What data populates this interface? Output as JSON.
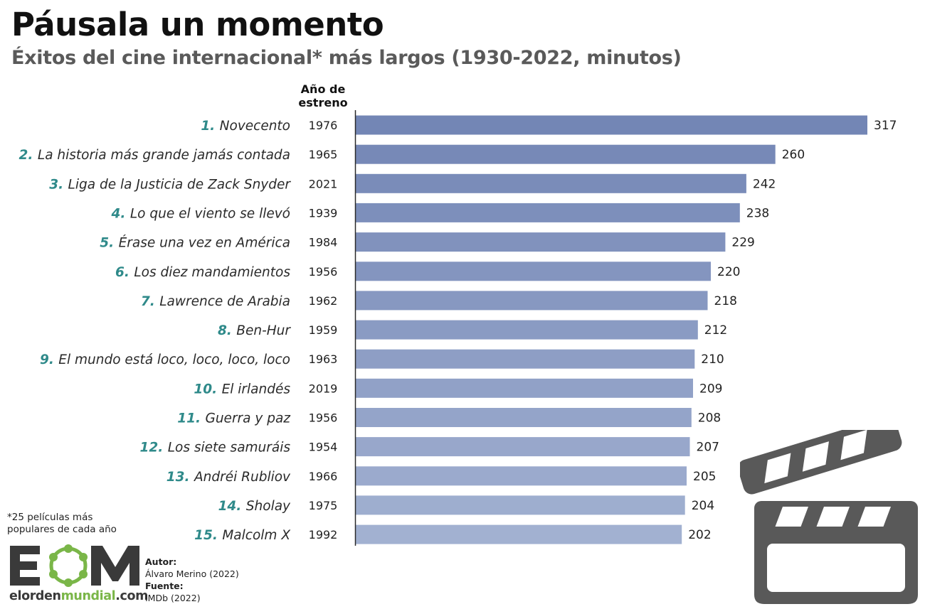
{
  "header": {
    "title": "Páusala un momento",
    "subtitle": "Éxitos del cine internacional* más largos (1930-2022, minutos)"
  },
  "columns": {
    "year_header_line1": "Año de",
    "year_header_line2": "estreno"
  },
  "chart_data": {
    "type": "bar",
    "orientation": "horizontal",
    "title": "Páusala un momento",
    "subtitle": "Éxitos del cine internacional* más largos (1930-2022, minutos)",
    "xlim": [
      0,
      317
    ],
    "categories": [
      "Novecento",
      "La historia más grande jamás contada",
      "Liga de la Justicia de Zack Snyder",
      "Lo que el viento se llevó",
      "Érase una vez en América",
      "Los diez mandamientos",
      "Lawrence de Arabia",
      "Ben-Hur",
      "El mundo está loco, loco, loco, loco",
      "El irlandés",
      "Guerra y paz",
      "Los siete samuráis",
      "Andréi Rubliov",
      "Sholay",
      "Malcolm X"
    ],
    "ranks": [
      "1.",
      "2.",
      "3.",
      "4.",
      "5.",
      "6.",
      "7.",
      "8.",
      "9.",
      "10.",
      "11.",
      "12.",
      "13.",
      "14.",
      "15."
    ],
    "years": [
      "1976",
      "1965",
      "2021",
      "1939",
      "1984",
      "1956",
      "1962",
      "1959",
      "1963",
      "2019",
      "1956",
      "1954",
      "1966",
      "1975",
      "1992"
    ],
    "values": [
      317,
      260,
      242,
      238,
      229,
      220,
      218,
      212,
      210,
      209,
      208,
      207,
      205,
      204,
      202
    ],
    "bar_colors": [
      "#7386b5",
      "#7789b7",
      "#7a8cb9",
      "#7d8fbb",
      "#8192bd",
      "#8495bf",
      "#8798c1",
      "#8a9bc3",
      "#8e9ec5",
      "#91a1c7",
      "#94a4c9",
      "#98a7cb",
      "#9baacd",
      "#9eaecf",
      "#a2b1d1"
    ],
    "label_number_color": "#2f8a8a"
  },
  "footnote": {
    "line1": "*25 películas más",
    "line2": "populares de cada año"
  },
  "logo": {
    "letters": "EOM",
    "url_part1": "elorden",
    "url_part2": "mundial",
    "url_part3": ".com"
  },
  "credits": {
    "author_label": "Autor:",
    "author": "Álvaro Merino (2022)",
    "source_label": "Fuente:",
    "source": "IMDb (2022)"
  },
  "icons": {
    "clapperboard": "clapperboard-icon"
  }
}
